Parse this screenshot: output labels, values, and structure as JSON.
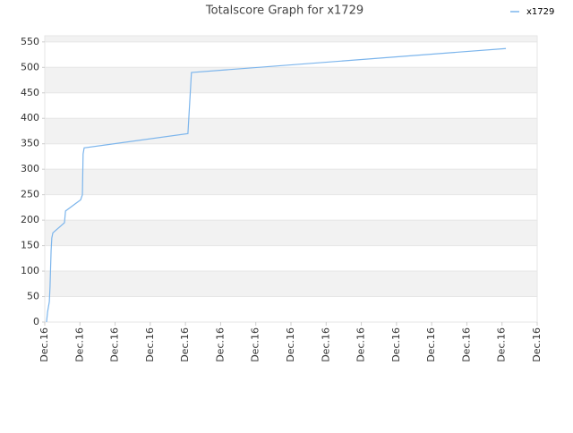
{
  "chart_data": {
    "type": "line",
    "title": "Totalscore Graph for x1729",
    "x": [
      0.05,
      0.08,
      0.13,
      0.15,
      0.18,
      0.2,
      0.23,
      0.56,
      0.59,
      1.02,
      1.07,
      1.09,
      1.12,
      4.07,
      4.12,
      4.17,
      13.11
    ],
    "series": [
      {
        "name": "x1729",
        "color": "#7cb5ec",
        "values": [
          0,
          20,
          40,
          70,
          140,
          165,
          175,
          195,
          218,
          240,
          250,
          330,
          342,
          370,
          430,
          490,
          537
        ]
      }
    ],
    "xlim": [
      0,
      14
    ],
    "xticks": [
      {
        "value": 0,
        "label": "Dec.16"
      },
      {
        "value": 1,
        "label": "Dec.16"
      },
      {
        "value": 2,
        "label": "Dec.16"
      },
      {
        "value": 3,
        "label": "Dec.16"
      },
      {
        "value": 4,
        "label": "Dec.16"
      },
      {
        "value": 5,
        "label": "Dec.16"
      },
      {
        "value": 6,
        "label": "Dec.16"
      },
      {
        "value": 7,
        "label": "Dec.16"
      },
      {
        "value": 8,
        "label": "Dec.16"
      },
      {
        "value": 9,
        "label": "Dec.16"
      },
      {
        "value": 10,
        "label": "Dec.16"
      },
      {
        "value": 11,
        "label": "Dec.16"
      },
      {
        "value": 12,
        "label": "Dec.16"
      },
      {
        "value": 13,
        "label": "Dec.16"
      },
      {
        "value": 14,
        "label": "Dec.16"
      }
    ],
    "ylim": [
      0,
      562
    ],
    "yticks": [
      0,
      50,
      100,
      150,
      200,
      250,
      300,
      350,
      400,
      450,
      500,
      550
    ],
    "grid": true,
    "band_color": "#f2f2f2",
    "legend": "top-right"
  }
}
